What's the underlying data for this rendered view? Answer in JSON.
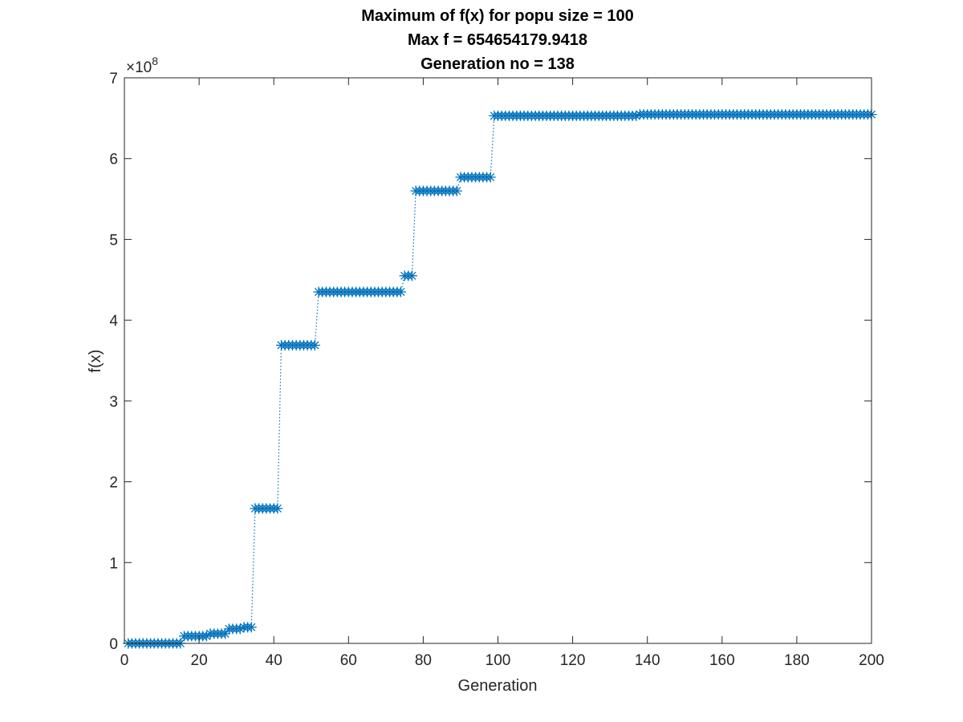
{
  "chart_data": {
    "type": "line",
    "title_lines": [
      "Maximum of f(x) for popu size = 100",
      "Max f = 654654179.9418",
      "Generation no = 138"
    ],
    "xlabel": "Generation",
    "ylabel": "f(x)",
    "y_exponent_prefix": "×10",
    "y_exponent_power": "8",
    "xlim": [
      0,
      200
    ],
    "ylim": [
      0,
      7
    ],
    "x_ticks": [
      0,
      20,
      40,
      60,
      80,
      100,
      120,
      140,
      160,
      180,
      200
    ],
    "y_ticks": [
      0,
      1,
      2,
      3,
      4,
      5,
      6,
      7
    ],
    "grid": false,
    "marker": "asterisk",
    "line_style": "dotted",
    "series_color": "#0072bd",
    "y_unit_multiplier": 100000000,
    "steps": [
      {
        "from": 1,
        "to": 15,
        "value": 0.0
      },
      {
        "from": 16,
        "to": 22,
        "value": 0.09
      },
      {
        "from": 23,
        "to": 27,
        "value": 0.12
      },
      {
        "from": 28,
        "to": 31,
        "value": 0.18
      },
      {
        "from": 32,
        "to": 34,
        "value": 0.2
      },
      {
        "from": 35,
        "to": 41,
        "value": 1.67
      },
      {
        "from": 42,
        "to": 51,
        "value": 3.69
      },
      {
        "from": 52,
        "to": 74,
        "value": 4.35
      },
      {
        "from": 75,
        "to": 77,
        "value": 4.55
      },
      {
        "from": 78,
        "to": 89,
        "value": 5.6
      },
      {
        "from": 90,
        "to": 98,
        "value": 5.77
      },
      {
        "from": 99,
        "to": 137,
        "value": 6.53
      },
      {
        "from": 138,
        "to": 200,
        "value": 6.5465
      }
    ]
  }
}
